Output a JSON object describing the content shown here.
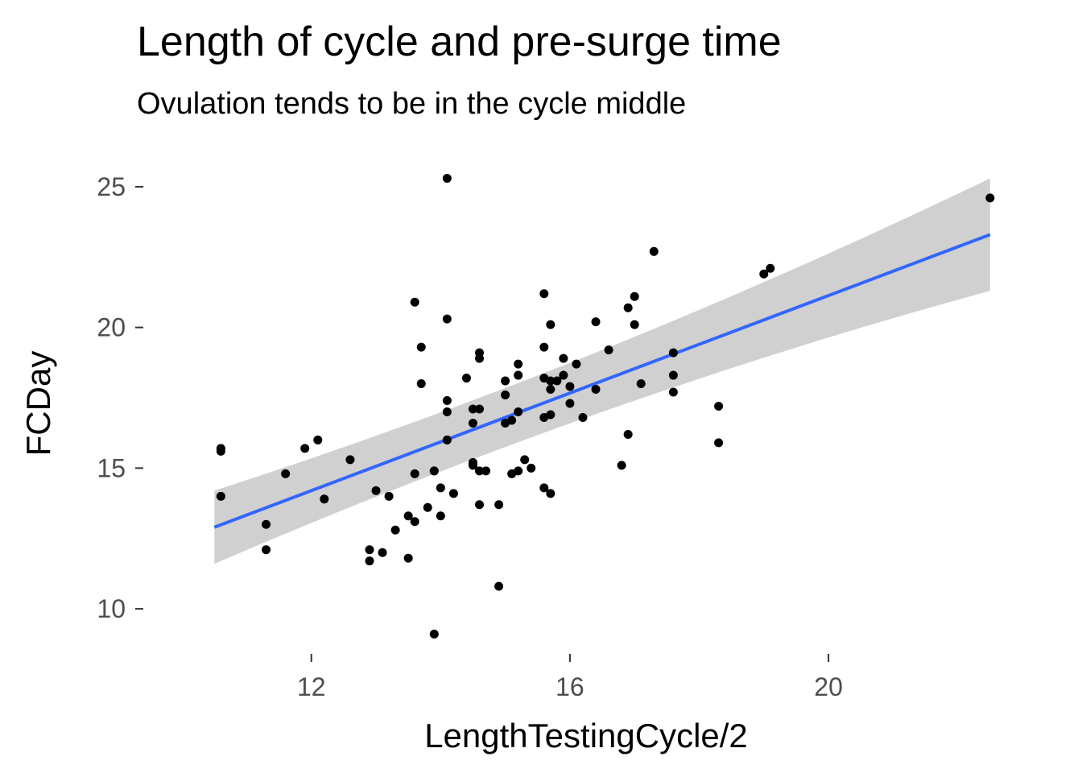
{
  "chart_data": {
    "type": "scatter",
    "title": "Length of cycle and pre-surge time",
    "subtitle": "Ovulation tends to be in the cycle middle",
    "xlabel": "LengthTestingCycle/2",
    "ylabel": "FCDay",
    "xlim": [
      9.4,
      23.1
    ],
    "ylim": [
      8.4,
      26.2
    ],
    "x_ticks": [
      12,
      16,
      20
    ],
    "y_ticks": [
      10,
      15,
      20,
      25
    ],
    "x_tick_labels": [
      "12",
      "16",
      "20"
    ],
    "y_tick_labels": [
      "10",
      "15",
      "20",
      "25"
    ],
    "grid": false,
    "legend": "none",
    "point_color": "#000000",
    "fit_line": {
      "method": "linear",
      "color": "#3366ff",
      "band_color": "#d0d0d0",
      "x_range": [
        10.5,
        22.5
      ],
      "line_y": [
        12.9,
        23.3
      ],
      "band_lower": [
        11.6,
        21.3
      ],
      "band_upper": [
        14.2,
        25.3
      ]
    },
    "points": [
      {
        "x": 10.6,
        "y": 15.6
      },
      {
        "x": 10.6,
        "y": 15.7
      },
      {
        "x": 10.6,
        "y": 14.0
      },
      {
        "x": 11.3,
        "y": 13.0
      },
      {
        "x": 11.3,
        "y": 12.1
      },
      {
        "x": 11.6,
        "y": 14.8
      },
      {
        "x": 11.9,
        "y": 15.7
      },
      {
        "x": 12.1,
        "y": 16.0
      },
      {
        "x": 12.2,
        "y": 13.9
      },
      {
        "x": 12.6,
        "y": 15.3
      },
      {
        "x": 12.9,
        "y": 12.1
      },
      {
        "x": 12.9,
        "y": 11.7
      },
      {
        "x": 13.0,
        "y": 14.2
      },
      {
        "x": 13.1,
        "y": 12.0
      },
      {
        "x": 13.2,
        "y": 14.0
      },
      {
        "x": 13.3,
        "y": 12.8
      },
      {
        "x": 13.5,
        "y": 11.8
      },
      {
        "x": 13.5,
        "y": 13.3
      },
      {
        "x": 13.6,
        "y": 13.1
      },
      {
        "x": 13.6,
        "y": 20.9
      },
      {
        "x": 13.6,
        "y": 14.8
      },
      {
        "x": 13.7,
        "y": 18.0
      },
      {
        "x": 13.7,
        "y": 19.3
      },
      {
        "x": 13.8,
        "y": 13.6
      },
      {
        "x": 13.9,
        "y": 14.9
      },
      {
        "x": 13.9,
        "y": 14.9
      },
      {
        "x": 13.9,
        "y": 9.1
      },
      {
        "x": 14.0,
        "y": 14.3
      },
      {
        "x": 14.0,
        "y": 13.3
      },
      {
        "x": 14.1,
        "y": 25.3
      },
      {
        "x": 14.1,
        "y": 20.3
      },
      {
        "x": 14.1,
        "y": 17.4
      },
      {
        "x": 14.1,
        "y": 17.0
      },
      {
        "x": 14.1,
        "y": 16.0
      },
      {
        "x": 14.2,
        "y": 14.1
      },
      {
        "x": 14.4,
        "y": 18.2
      },
      {
        "x": 14.5,
        "y": 17.1
      },
      {
        "x": 14.5,
        "y": 16.6
      },
      {
        "x": 14.5,
        "y": 15.2
      },
      {
        "x": 14.5,
        "y": 15.1
      },
      {
        "x": 14.6,
        "y": 17.1
      },
      {
        "x": 14.6,
        "y": 14.9
      },
      {
        "x": 14.6,
        "y": 13.7
      },
      {
        "x": 14.6,
        "y": 19.1
      },
      {
        "x": 14.6,
        "y": 18.9
      },
      {
        "x": 14.7,
        "y": 14.9
      },
      {
        "x": 14.9,
        "y": 13.7
      },
      {
        "x": 14.9,
        "y": 10.8
      },
      {
        "x": 15.0,
        "y": 18.1
      },
      {
        "x": 15.0,
        "y": 17.6
      },
      {
        "x": 15.0,
        "y": 16.6
      },
      {
        "x": 15.1,
        "y": 14.8
      },
      {
        "x": 15.1,
        "y": 16.7
      },
      {
        "x": 15.2,
        "y": 17.0
      },
      {
        "x": 15.2,
        "y": 18.7
      },
      {
        "x": 15.2,
        "y": 18.3
      },
      {
        "x": 15.2,
        "y": 14.9
      },
      {
        "x": 15.3,
        "y": 15.3
      },
      {
        "x": 15.4,
        "y": 15.0
      },
      {
        "x": 15.6,
        "y": 21.2
      },
      {
        "x": 15.6,
        "y": 19.3
      },
      {
        "x": 15.6,
        "y": 18.2
      },
      {
        "x": 15.6,
        "y": 16.8
      },
      {
        "x": 15.6,
        "y": 14.3
      },
      {
        "x": 15.7,
        "y": 18.1
      },
      {
        "x": 15.7,
        "y": 16.9
      },
      {
        "x": 15.7,
        "y": 14.1
      },
      {
        "x": 15.7,
        "y": 20.1
      },
      {
        "x": 15.7,
        "y": 17.8
      },
      {
        "x": 15.8,
        "y": 18.1
      },
      {
        "x": 15.9,
        "y": 18.3
      },
      {
        "x": 15.9,
        "y": 18.9
      },
      {
        "x": 16.0,
        "y": 17.3
      },
      {
        "x": 16.0,
        "y": 17.9
      },
      {
        "x": 16.1,
        "y": 18.7
      },
      {
        "x": 16.2,
        "y": 16.8
      },
      {
        "x": 16.4,
        "y": 20.2
      },
      {
        "x": 16.4,
        "y": 17.8
      },
      {
        "x": 16.6,
        "y": 19.2
      },
      {
        "x": 16.8,
        "y": 15.1
      },
      {
        "x": 16.9,
        "y": 16.2
      },
      {
        "x": 16.9,
        "y": 20.7
      },
      {
        "x": 17.0,
        "y": 21.1
      },
      {
        "x": 17.0,
        "y": 20.1
      },
      {
        "x": 17.1,
        "y": 18.0
      },
      {
        "x": 17.3,
        "y": 22.7
      },
      {
        "x": 17.6,
        "y": 19.1
      },
      {
        "x": 17.6,
        "y": 18.3
      },
      {
        "x": 17.6,
        "y": 17.7
      },
      {
        "x": 18.3,
        "y": 17.2
      },
      {
        "x": 18.3,
        "y": 15.9
      },
      {
        "x": 19.0,
        "y": 21.9
      },
      {
        "x": 19.1,
        "y": 22.1
      },
      {
        "x": 22.5,
        "y": 24.6
      }
    ]
  }
}
